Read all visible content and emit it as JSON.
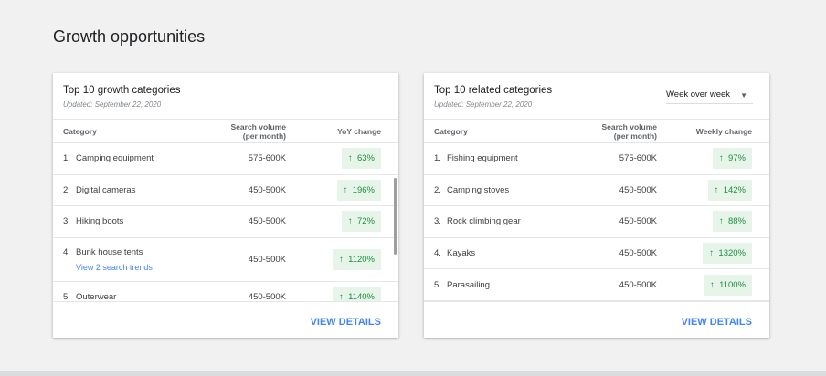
{
  "page": {
    "title": "Growth opportunities"
  },
  "cards": [
    {
      "title": "Top 10 growth categories",
      "updated": "Updated: September 22, 2020",
      "columns": {
        "category": "Category",
        "volume": "Search volume (per month)",
        "change": "YoY change"
      },
      "rows": [
        {
          "rank": "1.",
          "category": "Camping equipment",
          "volume": "575-600K",
          "change": "63%"
        },
        {
          "rank": "2.",
          "category": "Digital cameras",
          "volume": "450-500K",
          "change": "196%"
        },
        {
          "rank": "3.",
          "category": "Hiking boots",
          "volume": "450-500K",
          "change": "72%"
        },
        {
          "rank": "4.",
          "category": "Bunk house tents",
          "volume": "450-500K",
          "change": "1120%",
          "link": "View 2 search trends"
        },
        {
          "rank": "5.",
          "category": "Outerwear",
          "volume": "450-500K",
          "change": "1140%"
        }
      ],
      "action": "VIEW DETAILS"
    },
    {
      "title": "Top 10 related categories",
      "updated": "Updated: September 22, 2020",
      "select": "Week over week",
      "columns": {
        "category": "Category",
        "volume": "Search volume (per month)",
        "change": "Weekly change"
      },
      "rows": [
        {
          "rank": "1.",
          "category": "Fishing equipment",
          "volume": "575-600K",
          "change": "97%"
        },
        {
          "rank": "2.",
          "category": "Camping stoves",
          "volume": "450-500K",
          "change": "142%"
        },
        {
          "rank": "3.",
          "category": "Rock climbing gear",
          "volume": "450-500K",
          "change": "88%"
        },
        {
          "rank": "4.",
          "category": "Kayaks",
          "volume": "450-500K",
          "change": "1320%"
        },
        {
          "rank": "5.",
          "category": "Parasailing",
          "volume": "450-500K",
          "change": "1100%"
        }
      ],
      "action": "VIEW DETAILS"
    }
  ],
  "colors": {
    "accent": "#4285f4",
    "positive": "#1e8e3e",
    "positive_bg": "#e6f4ea"
  },
  "icons": {
    "change": "arrow-up-icon",
    "select": "caret-down-icon"
  }
}
